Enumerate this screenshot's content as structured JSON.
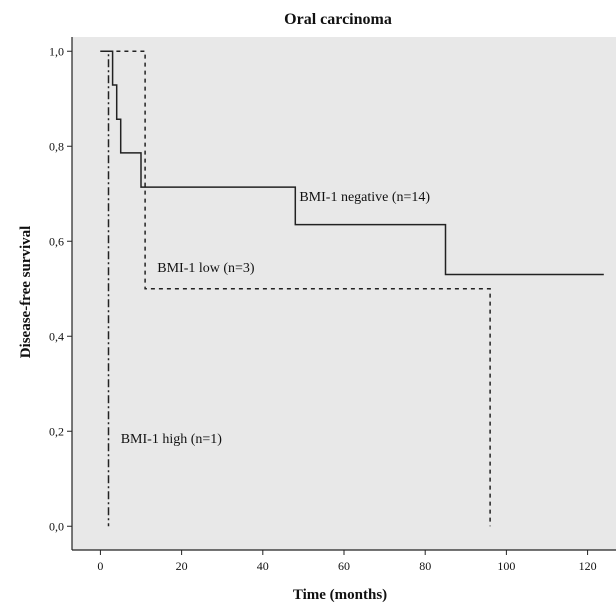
{
  "chart_data": {
    "type": "line",
    "subtype": "kaplan-meier step plot",
    "title": "Oral carcinoma",
    "xlabel": "Time (months)",
    "ylabel": "Disease-free survival",
    "xlim": [
      -7,
      127
    ],
    "ylim": [
      -0.05,
      1.03
    ],
    "x_ticks": [
      {
        "value": 0,
        "label": "0"
      },
      {
        "value": 20,
        "label": "20"
      },
      {
        "value": 40,
        "label": "40"
      },
      {
        "value": 60,
        "label": "60"
      },
      {
        "value": 80,
        "label": "80"
      },
      {
        "value": 100,
        "label": "100"
      },
      {
        "value": 120,
        "label": "120"
      }
    ],
    "y_ticks": [
      {
        "value": 0.0,
        "label": "0,0"
      },
      {
        "value": 0.2,
        "label": "0,2"
      },
      {
        "value": 0.4,
        "label": "0,4"
      },
      {
        "value": 0.6,
        "label": "0,6"
      },
      {
        "value": 0.8,
        "label": "0,8"
      },
      {
        "value": 1.0,
        "label": "1,0"
      }
    ],
    "grid": false,
    "legend": "none",
    "background": "#e8e8e8",
    "series": [
      {
        "name": "BMI-1 negative (n=14)",
        "line_style": "solid",
        "color": "#222222",
        "annotation_at": {
          "x": 49,
          "y": 0.685
        },
        "points": [
          [
            0,
            1.0
          ],
          [
            3,
            1.0
          ],
          [
            3,
            0.929
          ],
          [
            4,
            0.929
          ],
          [
            4,
            0.857
          ],
          [
            5,
            0.857
          ],
          [
            5,
            0.786
          ],
          [
            10,
            0.786
          ],
          [
            10,
            0.714
          ],
          [
            48,
            0.714
          ],
          [
            48,
            0.635
          ],
          [
            85,
            0.635
          ],
          [
            85,
            0.53
          ],
          [
            124,
            0.53
          ]
        ]
      },
      {
        "name": "BMI-1 low (n=3)",
        "line_style": "dashed",
        "color": "#222222",
        "annotation_at": {
          "x": 14,
          "y": 0.535
        },
        "points": [
          [
            0,
            1.0
          ],
          [
            11,
            1.0
          ],
          [
            11,
            0.5
          ],
          [
            96,
            0.5
          ],
          [
            96,
            0.0
          ]
        ]
      },
      {
        "name": "BMI-1 high (n=1)",
        "line_style": "dashdot",
        "color": "#222222",
        "annotation_at": {
          "x": 5,
          "y": 0.175
        },
        "points": [
          [
            0,
            1.0
          ],
          [
            2,
            1.0
          ],
          [
            2,
            0.0
          ]
        ]
      }
    ]
  }
}
